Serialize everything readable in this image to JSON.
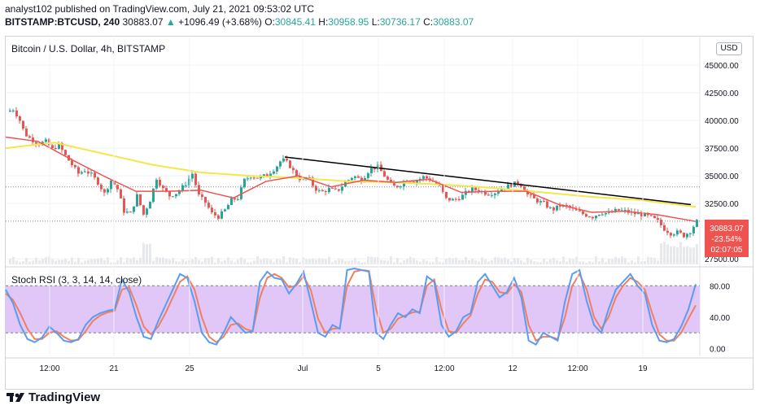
{
  "header": {
    "publisher_line": "analyst102 published on TradingView.com, July 21, 2021 09:53:02 UTC",
    "symbol": "BITSTAMP:BTCUSD, 240",
    "last": "30883.07",
    "change": "+1096.49 (+3.68%)",
    "o_label": "O:",
    "o_value": "30845.41",
    "h_label": "H:",
    "h_value": "30958.95",
    "l_label": "L:",
    "l_value": "30736.17",
    "c_label": "C:",
    "c_value": "30883.07"
  },
  "main_pane": {
    "title": "Bitcoin / U.S. Dollar, 4h, BITSTAMP",
    "currency_button": "USD",
    "price_badge": {
      "price": "30883.07",
      "change": "-23.54%",
      "countdown": "02:07:05"
    }
  },
  "rsi_pane": {
    "title": "Stoch RSI (3, 3, 14, 14, close)"
  },
  "footer": {
    "brand": "TradingView"
  },
  "colors": {
    "up": "#26a69a",
    "down": "#ef5350",
    "ma_slow": "#f5e64a",
    "ma_fast": "#ef5350",
    "trendline": "#000000",
    "rsi_k": "#5b9bf0",
    "rsi_d": "#f08060",
    "rsi_band": "#e1c6f8"
  },
  "chart_data": [
    {
      "type": "candlestick",
      "title": "Bitcoin / U.S. Dollar, 4h, BITSTAMP",
      "y_ticks": [
        "27500.00",
        "32500.00",
        "35000.00",
        "37500.00",
        "40000.00",
        "42500.00",
        "45000.00"
      ],
      "x_ticks": [
        "12:00",
        "21",
        "25",
        "Jul",
        "5",
        "12:00",
        "12",
        "12:00",
        "19"
      ],
      "ylim": [
        27000,
        47500
      ],
      "close_path": [
        [
          0,
          40800
        ],
        [
          8,
          41000
        ],
        [
          15,
          40200
        ],
        [
          22,
          38800
        ],
        [
          30,
          38300
        ],
        [
          40,
          37900
        ],
        [
          48,
          38100
        ],
        [
          56,
          37400
        ],
        [
          64,
          37800
        ],
        [
          72,
          36800
        ],
        [
          80,
          36000
        ],
        [
          88,
          35200
        ],
        [
          96,
          35500
        ],
        [
          104,
          35100
        ],
        [
          112,
          34400
        ],
        [
          120,
          33400
        ],
        [
          128,
          34600
        ],
        [
          136,
          33800
        ],
        [
          144,
          31800
        ],
        [
          152,
          31600
        ],
        [
          160,
          33200
        ],
        [
          168,
          31500
        ],
        [
          176,
          32800
        ],
        [
          184,
          34800
        ],
        [
          192,
          33800
        ],
        [
          200,
          33200
        ],
        [
          210,
          33500
        ],
        [
          220,
          34300
        ],
        [
          228,
          35200
        ],
        [
          236,
          33200
        ],
        [
          244,
          32600
        ],
        [
          252,
          31600
        ],
        [
          260,
          31300
        ],
        [
          268,
          31900
        ],
        [
          276,
          32800
        ],
        [
          284,
          33000
        ],
        [
          292,
          34600
        ],
        [
          300,
          35000
        ],
        [
          310,
          34800
        ],
        [
          320,
          35100
        ],
        [
          330,
          35700
        ],
        [
          338,
          36500
        ],
        [
          346,
          36100
        ],
        [
          354,
          35200
        ],
        [
          362,
          34600
        ],
        [
          370,
          34900
        ],
        [
          378,
          33900
        ],
        [
          386,
          33500
        ],
        [
          396,
          33800
        ],
        [
          406,
          33600
        ],
        [
          416,
          34400
        ],
        [
          426,
          35000
        ],
        [
          436,
          34600
        ],
        [
          446,
          35600
        ],
        [
          456,
          35800
        ],
        [
          466,
          34800
        ],
        [
          474,
          34000
        ],
        [
          482,
          34100
        ],
        [
          492,
          34700
        ],
        [
          502,
          34500
        ],
        [
          512,
          34900
        ],
        [
          522,
          34600
        ],
        [
          532,
          34000
        ],
        [
          540,
          32900
        ],
        [
          550,
          32800
        ],
        [
          560,
          33200
        ],
        [
          570,
          33800
        ],
        [
          580,
          33700
        ],
        [
          590,
          33400
        ],
        [
          600,
          33500
        ],
        [
          610,
          33900
        ],
        [
          620,
          34200
        ],
        [
          630,
          34400
        ],
        [
          640,
          33300
        ],
        [
          650,
          32800
        ],
        [
          660,
          32500
        ],
        [
          670,
          31900
        ],
        [
          680,
          32300
        ],
        [
          690,
          32200
        ],
        [
          700,
          31800
        ],
        [
          710,
          31500
        ],
        [
          720,
          31300
        ],
        [
          730,
          31700
        ],
        [
          740,
          31600
        ],
        [
          750,
          31900
        ],
        [
          760,
          31800
        ],
        [
          770,
          31600
        ],
        [
          780,
          31500
        ],
        [
          790,
          31300
        ],
        [
          800,
          30900
        ],
        [
          808,
          30200
        ],
        [
          816,
          29800
        ],
        [
          824,
          29900
        ],
        [
          832,
          29600
        ],
        [
          840,
          30000
        ],
        [
          848,
          30883
        ]
      ],
      "ma_fast_path": [
        [
          0,
          38500
        ],
        [
          40,
          38100
        ],
        [
          80,
          36500
        ],
        [
          120,
          35000
        ],
        [
          160,
          33600
        ],
        [
          200,
          33600
        ],
        [
          240,
          33700
        ],
        [
          280,
          33000
        ],
        [
          320,
          34500
        ],
        [
          360,
          35000
        ],
        [
          400,
          34000
        ],
        [
          440,
          34600
        ],
        [
          480,
          34400
        ],
        [
          520,
          34700
        ],
        [
          560,
          33500
        ],
        [
          600,
          33600
        ],
        [
          640,
          33600
        ],
        [
          680,
          32400
        ],
        [
          720,
          31700
        ],
        [
          760,
          31800
        ],
        [
          800,
          31500
        ],
        [
          848,
          30880
        ]
      ],
      "ma_slow_path": [
        [
          0,
          37500
        ],
        [
          60,
          38000
        ],
        [
          120,
          37000
        ],
        [
          180,
          36000
        ],
        [
          240,
          35300
        ],
        [
          300,
          35000
        ],
        [
          360,
          34800
        ],
        [
          420,
          34500
        ],
        [
          480,
          34400
        ],
        [
          540,
          34200
        ],
        [
          600,
          33900
        ],
        [
          660,
          33500
        ],
        [
          720,
          33100
        ],
        [
          780,
          32800
        ],
        [
          848,
          32200
        ]
      ],
      "trendline": [
        [
          343,
          36700
        ],
        [
          842,
          32400
        ]
      ],
      "hlines": [
        34000,
        30900
      ]
    },
    {
      "type": "line",
      "title": "Stoch RSI (3, 3, 14, 14, close)",
      "y_ticks": [
        "0.00",
        "40.00",
        "80.00"
      ],
      "ylim": [
        -10,
        100
      ],
      "band": [
        20,
        80
      ],
      "series": [
        {
          "values": [
            75,
            58,
            30,
            12,
            8,
            14,
            28,
            20,
            10,
            8,
            12,
            30,
            40,
            45,
            48,
            50,
            88,
            72,
            40,
            15,
            12,
            35,
            55,
            75,
            95,
            90,
            60,
            20,
            8,
            5,
            20,
            40,
            30,
            20,
            22,
            85,
            98,
            90,
            88,
            70,
            82,
            98,
            60,
            20,
            15,
            30,
            25,
            100,
            102,
            100,
            98,
            20,
            12,
            30,
            45,
            40,
            50,
            45,
            92,
            85,
            30,
            15,
            22,
            40,
            45,
            85,
            95,
            80,
            65,
            72,
            90,
            65,
            10,
            5,
            20,
            15,
            10,
            60,
            95,
            100,
            60,
            30,
            20,
            50,
            75,
            85,
            95,
            80,
            70,
            30,
            10,
            8,
            12,
            28,
            50,
            82
          ]
        },
        {
          "values": [
            70,
            62,
            45,
            25,
            12,
            12,
            20,
            22,
            15,
            10,
            11,
            22,
            35,
            42,
            46,
            48,
            75,
            78,
            55,
            28,
            18,
            28,
            45,
            65,
            85,
            92,
            75,
            40,
            15,
            8,
            15,
            30,
            32,
            25,
            22,
            65,
            90,
            95,
            90,
            78,
            80,
            92,
            75,
            38,
            20,
            25,
            26,
            80,
            98,
            100,
            99,
            50,
            20,
            25,
            38,
            42,
            46,
            47,
            80,
            88,
            50,
            22,
            20,
            32,
            42,
            70,
            88,
            85,
            72,
            70,
            82,
            72,
            30,
            10,
            15,
            15,
            12,
            40,
            80,
            95,
            75,
            40,
            25,
            40,
            65,
            80,
            90,
            85,
            75,
            45,
            18,
            10,
            10,
            20,
            38,
            55
          ]
        }
      ]
    }
  ]
}
